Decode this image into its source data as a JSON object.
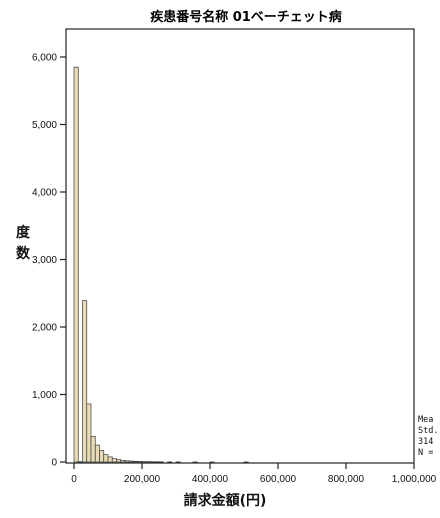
{
  "chart_data": {
    "type": "bar",
    "title": "疾患番号名称 01ベーチェット病",
    "xlabel": "請求金額(円)",
    "ylabel": [
      "度",
      "数"
    ],
    "xlim": [
      0,
      1000000
    ],
    "ylim": [
      0,
      6500
    ],
    "x_ticks": [
      0,
      200000,
      400000,
      600000,
      800000,
      1000000
    ],
    "x_tick_labels": [
      "0",
      "200,000",
      "400,000",
      "600,000",
      "800,000",
      "1,000,000"
    ],
    "y_ticks": [
      0,
      1000,
      2000,
      3000,
      4000,
      5000,
      6000
    ],
    "y_tick_labels": [
      "0",
      "1,000",
      "2,000",
      "3,000",
      "4,000",
      "5,000",
      "6,000"
    ],
    "bin_width": 12500,
    "bins": [
      {
        "x": 0,
        "count": 5850
      },
      {
        "x": 12500,
        "count": 5
      },
      {
        "x": 25000,
        "count": 2390
      },
      {
        "x": 37500,
        "count": 860
      },
      {
        "x": 50000,
        "count": 380
      },
      {
        "x": 62500,
        "count": 250
      },
      {
        "x": 75000,
        "count": 170
      },
      {
        "x": 87500,
        "count": 110
      },
      {
        "x": 100000,
        "count": 75
      },
      {
        "x": 112500,
        "count": 50
      },
      {
        "x": 125000,
        "count": 35
      },
      {
        "x": 137500,
        "count": 25
      },
      {
        "x": 150000,
        "count": 18
      },
      {
        "x": 162500,
        "count": 14
      },
      {
        "x": 175000,
        "count": 10
      },
      {
        "x": 187500,
        "count": 8
      },
      {
        "x": 200000,
        "count": 6
      },
      {
        "x": 212500,
        "count": 5
      },
      {
        "x": 225000,
        "count": 4
      },
      {
        "x": 237500,
        "count": 3
      },
      {
        "x": 250000,
        "count": 3
      },
      {
        "x": 275000,
        "count": 2
      },
      {
        "x": 300000,
        "count": 2
      },
      {
        "x": 350000,
        "count": 1
      },
      {
        "x": 400000,
        "count": 1
      },
      {
        "x": 500000,
        "count": 1
      }
    ],
    "stats_lines": [
      "Mea",
      "Std.",
      "314",
      "N ="
    ],
    "colors": {
      "bar_fill": "#e8dcb8",
      "bar_stroke": "#3a3a3a",
      "axis": "#222222"
    }
  }
}
